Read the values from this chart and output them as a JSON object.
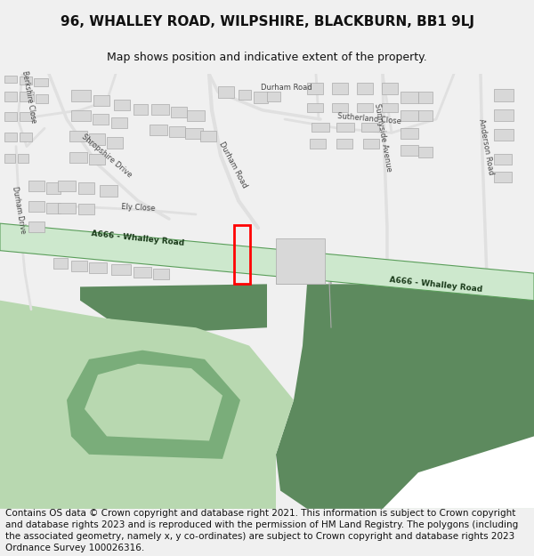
{
  "title": "96, WHALLEY ROAD, WILPSHIRE, BLACKBURN, BB1 9LJ",
  "subtitle": "Map shows position and indicative extent of the property.",
  "footer": "Contains OS data © Crown copyright and database right 2021. This information is subject to Crown copyright and database rights 2023 and is reproduced with the permission of HM Land Registry. The polygons (including the associated geometry, namely x, y co-ordinates) are subject to Crown copyright and database rights 2023 Ordnance Survey 100026316.",
  "title_fontsize": 11,
  "subtitle_fontsize": 9,
  "footer_fontsize": 7.5,
  "bg_color": "#f0f0f0",
  "map_bg": "#ffffff",
  "road_fill": "#cde8cd",
  "road_border": "#5a9e5a",
  "building_color": "#d8d8d8",
  "building_edge": "#aaaaaa",
  "green_dark": "#5d8a5e",
  "green_mid": "#7aad7a",
  "green_light": "#b8d8b0",
  "plot_color": "#ff0000",
  "label_dark": "#1a3a1a",
  "street_color": "#555555",
  "road_line": "#dddddd"
}
